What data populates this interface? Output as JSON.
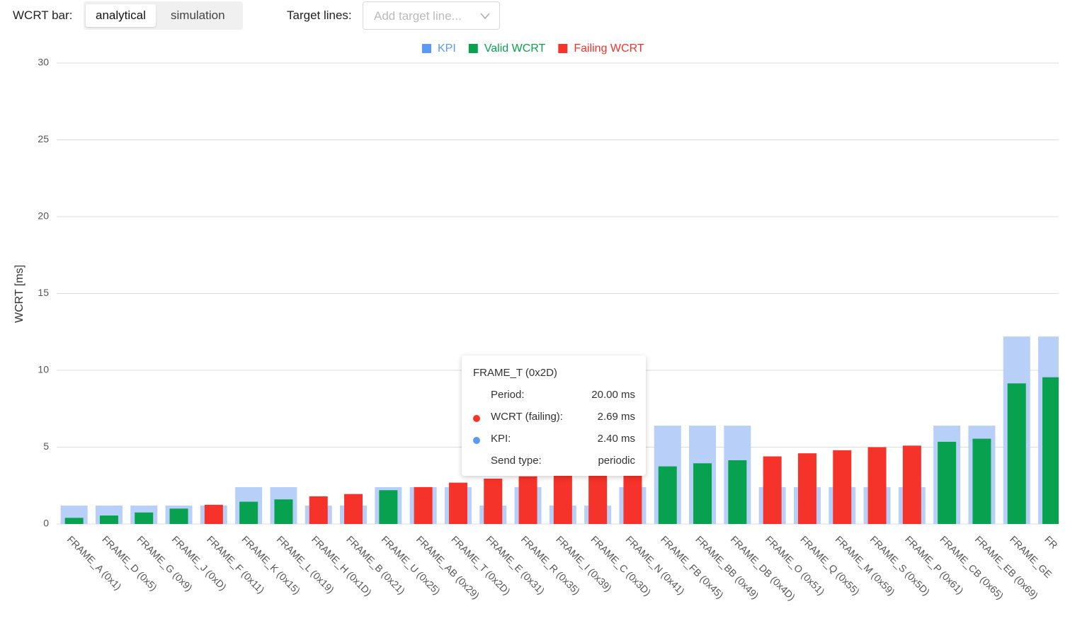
{
  "controls": {
    "wcrt_label": "WCRT bar:",
    "options": [
      "analytical",
      "simulation"
    ],
    "target_label": "Target lines:",
    "target_placeholder": "Add target line..."
  },
  "chart_data": {
    "type": "bar",
    "y_label": "WCRT [ms]",
    "categories": [
      "FRAME_A (0x1)",
      "FRAME_D (0x5)",
      "FRAME_G (0x9)",
      "FRAME_J (0xD)",
      "FRAME_F (0x11)",
      "FRAME_K (0x15)",
      "FRAME_L (0x19)",
      "FRAME_H (0x1D)",
      "FRAME_B (0x21)",
      "FRAME_U (0x25)",
      "FRAME_AB (0x29)",
      "FRAME_T (0x2D)",
      "FRAME_E (0x31)",
      "FRAME_R (0x35)",
      "FRAME_I (0x39)",
      "FRAME_C (0x3D)",
      "FRAME_N (0x41)",
      "FRAME_FB (0x45)",
      "FRAME_BB (0x49)",
      "FRAME_DB (0x4D)",
      "FRAME_O (0x51)",
      "FRAME_Q (0x55)",
      "FRAME_M (0x59)",
      "FRAME_S (0x5D)",
      "FRAME_P (0x61)",
      "FRAME_CB (0x65)",
      "FRAME_EB (0x69)",
      "FRAME_GE",
      "FR"
    ],
    "series": [
      {
        "name": "KPI",
        "color": "#b8d0f8",
        "legend_color": "#5a9af5",
        "values": [
          1.2,
          1.2,
          1.2,
          1.2,
          1.2,
          2.4,
          2.4,
          1.2,
          1.2,
          2.4,
          2.4,
          2.4,
          1.2,
          2.4,
          1.2,
          1.2,
          2.4,
          6.4,
          6.4,
          6.4,
          2.4,
          2.4,
          2.4,
          2.4,
          2.4,
          6.4,
          6.4,
          12.2,
          12.2
        ]
      },
      {
        "name": "Valid WCRT",
        "color": "#08a150",
        "legend_color": "#08a150",
        "values": [
          0.4,
          0.55,
          0.75,
          1.0,
          null,
          1.45,
          1.6,
          null,
          null,
          2.2,
          null,
          null,
          null,
          null,
          null,
          null,
          null,
          3.75,
          3.95,
          4.15,
          null,
          null,
          null,
          null,
          null,
          5.35,
          5.55,
          9.15,
          9.55
        ]
      },
      {
        "name": "Failing WCRT",
        "color": "#f5332a",
        "legend_color": "#f5332a",
        "values": [
          null,
          null,
          null,
          null,
          1.25,
          null,
          null,
          1.8,
          1.95,
          null,
          2.4,
          2.69,
          2.95,
          3.1,
          3.2,
          3.4,
          3.55,
          null,
          null,
          null,
          4.4,
          4.6,
          4.8,
          5.0,
          5.1,
          null,
          null,
          null,
          null
        ]
      }
    ],
    "ylim": [
      0,
      30
    ],
    "yticks": [
      0,
      5,
      10,
      15,
      20,
      25,
      30
    ],
    "grid": true
  },
  "tooltip": {
    "title": "FRAME_T (0x2D)",
    "rows": [
      [
        "Period:",
        "20.00 ms"
      ],
      [
        "WCRT (failing):",
        "2.69 ms"
      ],
      [
        "KPI:",
        "2.40 ms"
      ],
      [
        "Send type:",
        "periodic"
      ]
    ]
  }
}
